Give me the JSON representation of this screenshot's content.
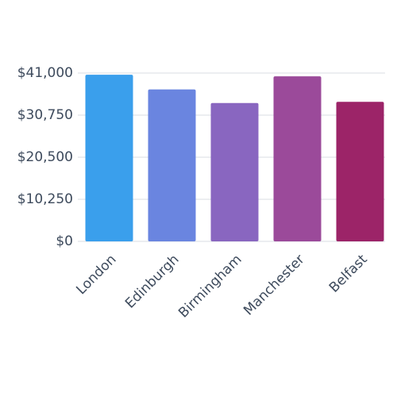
{
  "chart_data": {
    "type": "bar",
    "categories": [
      "London",
      "Edinburgh",
      "Birmingham",
      "Manchester",
      "Belfast"
    ],
    "values": [
      40600,
      37000,
      33700,
      40200,
      34000
    ],
    "colors": [
      "#3a9fec",
      "#6a85e0",
      "#8966c0",
      "#9b4a9a",
      "#9c2468"
    ],
    "ylim": [
      0,
      41000
    ],
    "yticks": [
      {
        "value": 0,
        "label": "$0"
      },
      {
        "value": 10250,
        "label": "$10,250"
      },
      {
        "value": 20500,
        "label": "$20,500"
      },
      {
        "value": 30750,
        "label": "$30,750"
      },
      {
        "value": 41000,
        "label": "$41,000"
      }
    ],
    "grid": true
  }
}
